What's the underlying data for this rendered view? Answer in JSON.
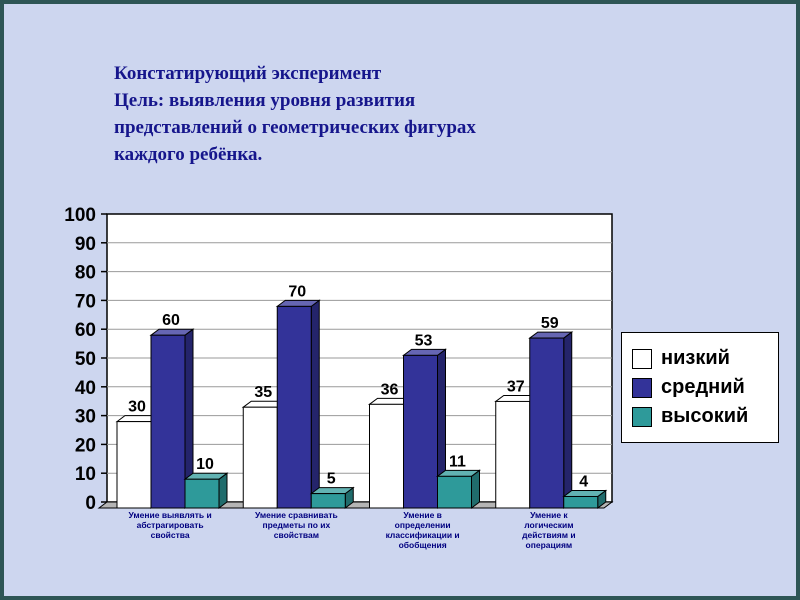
{
  "slide": {
    "title_lines": [
      "Констатирующий эксперимент",
      "Цель: выявления уровня развития",
      "представлений о геометрических фигурах",
      "каждого ребёнка."
    ],
    "background_color": "#cdd6ef",
    "border_color": "#2e5555",
    "title_color": "#16168c"
  },
  "chart_data": {
    "type": "bar",
    "style": "3d-column",
    "title": "",
    "xlabel": "",
    "ylabel": "",
    "ylim": [
      0,
      100
    ],
    "ytick_step": 10,
    "grid": true,
    "legend_position": "right",
    "categories": [
      [
        "Умение выявлять и",
        "абстрагировать",
        "свойства"
      ],
      [
        "Умение сравнивать",
        "предметы по их",
        "свойствам"
      ],
      [
        "Умение в",
        "определении",
        "классификации и",
        "обобщения"
      ],
      [
        "Умение к",
        "логическим",
        "действиям и",
        "операциям"
      ]
    ],
    "series": [
      {
        "name": "низкий",
        "color": "#ffffff",
        "values": [
          30,
          35,
          36,
          37
        ]
      },
      {
        "name": "средний",
        "color": "#333399",
        "values": [
          60,
          70,
          53,
          59
        ]
      },
      {
        "name": "высокий",
        "color": "#2e9a9a",
        "values": [
          10,
          5,
          11,
          4
        ]
      }
    ]
  }
}
